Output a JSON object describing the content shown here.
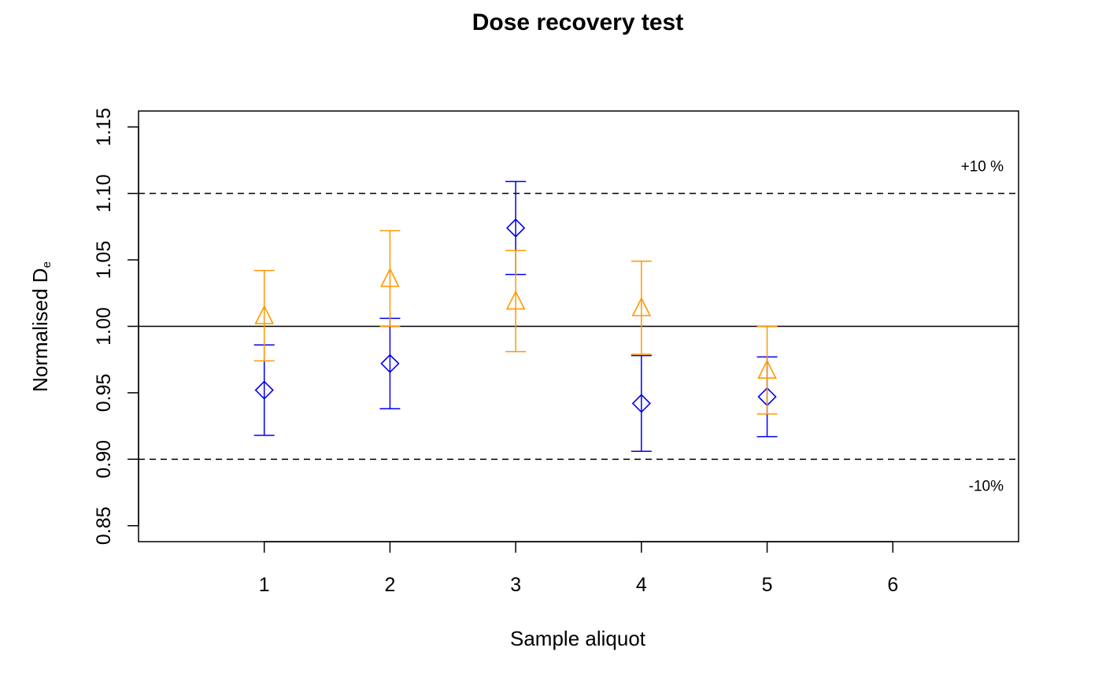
{
  "chart_data": {
    "type": "scatter",
    "title": "Dose recovery test",
    "xlabel": "Sample aliquot",
    "ylabel_main": "Normalised D",
    "ylabel_sub": "e",
    "xlim": [
      0.0,
      7.0
    ],
    "xticks": [
      1,
      2,
      3,
      4,
      5,
      6
    ],
    "ylim": [
      0.838,
      1.162
    ],
    "yticks": [
      0.85,
      0.9,
      0.95,
      1.0,
      1.05,
      1.1,
      1.15
    ],
    "ytick_labels": [
      "0.85",
      "0.90",
      "0.95",
      "1.00",
      "1.05",
      "1.10",
      "1.15"
    ],
    "grid": false,
    "reference_lines": [
      {
        "y": 1.0,
        "style": "solid"
      },
      {
        "y": 1.1,
        "style": "dashed"
      },
      {
        "y": 0.9,
        "style": "dashed"
      }
    ],
    "annotations": [
      {
        "text": "+10 %",
        "y": 1.1
      },
      {
        "text": "-10%",
        "y": 0.9
      }
    ],
    "series": [
      {
        "color": "#0000ee",
        "marker": "diamond",
        "x": [
          1,
          2,
          3,
          4,
          5
        ],
        "y": [
          0.952,
          0.972,
          1.074,
          0.942,
          0.947
        ],
        "err": [
          0.034,
          0.034,
          0.035,
          0.036,
          0.03
        ]
      },
      {
        "color": "#ff9900",
        "marker": "triangle",
        "x": [
          1,
          2,
          3,
          4,
          5
        ],
        "y": [
          1.008,
          1.036,
          1.019,
          1.014,
          0.967
        ],
        "err": [
          0.034,
          0.036,
          0.038,
          0.035,
          0.033
        ]
      }
    ]
  }
}
